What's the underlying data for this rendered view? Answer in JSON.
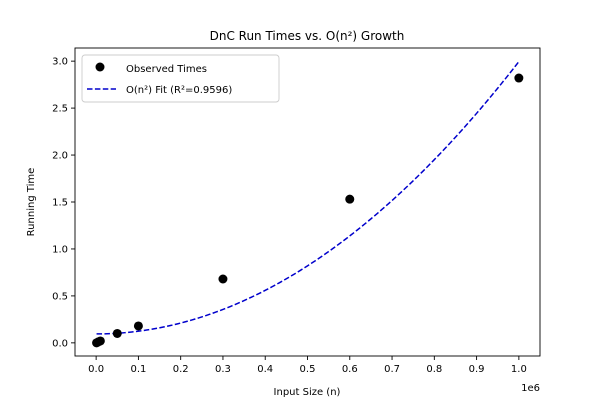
{
  "chart_data": {
    "type": "scatter",
    "title": "DnC Run Times vs. O(n²) Growth",
    "xlabel": "Input Size (n)",
    "ylabel": "Running Time",
    "x_offset_label": "1e6",
    "xlim": [
      -50000,
      1050000
    ],
    "ylim": [
      -0.14,
      3.14
    ],
    "xticks": [
      0,
      100000,
      200000,
      300000,
      400000,
      500000,
      600000,
      700000,
      800000,
      900000,
      1000000
    ],
    "xtick_labels": [
      "0.0",
      "0.1",
      "0.2",
      "0.3",
      "0.4",
      "0.5",
      "0.6",
      "0.7",
      "0.8",
      "0.9",
      "1.0"
    ],
    "yticks": [
      0,
      0.5,
      1.0,
      1.5,
      2.0,
      2.5,
      3.0
    ],
    "ytick_labels": [
      "0.0",
      "0.5",
      "1.0",
      "1.5",
      "2.0",
      "2.5",
      "3.0"
    ],
    "grid": false,
    "legend_position": "top-left",
    "series": [
      {
        "name": "Observed Times",
        "kind": "scatter",
        "color": "#000000",
        "x": [
          1000,
          5000,
          10000,
          50000,
          100000,
          300000,
          600000,
          1000000
        ],
        "y": [
          0.0,
          0.01,
          0.02,
          0.1,
          0.18,
          0.68,
          1.53,
          2.82
        ]
      },
      {
        "name": "O(n²) Fit (R²=0.9596)",
        "kind": "line",
        "style": "dashed",
        "color": "#0000cc",
        "model": "a*n^2 + b",
        "a": 2.9e-12,
        "b": 0.095,
        "x_range": [
          1000,
          1000000
        ]
      }
    ]
  }
}
